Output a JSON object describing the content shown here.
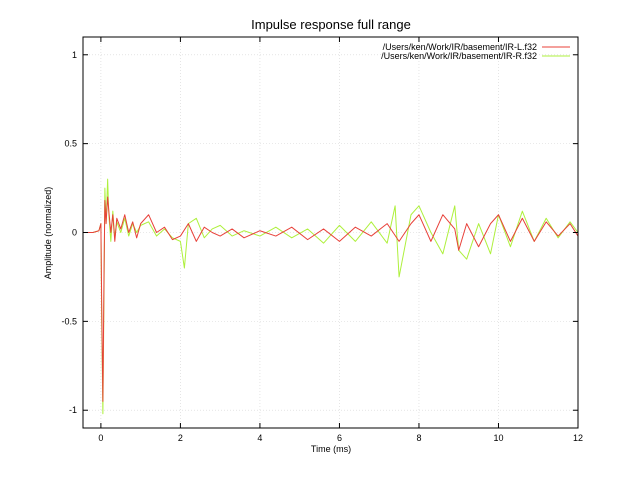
{
  "chart_data": {
    "type": "line",
    "title": "Impulse response full range",
    "xlabel": "Time (ms)",
    "ylabel": "Amplitude (normalized)",
    "xlim": [
      -0.45,
      12
    ],
    "ylim": [
      -1.1,
      1.1
    ],
    "x_ticks": [
      0,
      2,
      4,
      6,
      8,
      10,
      12
    ],
    "x_tick_labels": [
      "0",
      "2",
      "4",
      "6",
      "8",
      "10",
      "12"
    ],
    "y_ticks": [
      -1,
      -0.5,
      0,
      0.5,
      1
    ],
    "y_tick_labels": [
      "-1",
      "-0.5",
      "0",
      "0.5",
      "1"
    ],
    "grid": true,
    "legend_position": "top-right",
    "series": [
      {
        "name": "/Users/ken/Work/IR/basement/IR-L.f32",
        "color": "#e8413a",
        "x": [
          -0.45,
          -0.2,
          -0.05,
          0,
          0.02,
          0.05,
          0.08,
          0.1,
          0.13,
          0.17,
          0.2,
          0.25,
          0.3,
          0.35,
          0.4,
          0.5,
          0.6,
          0.7,
          0.8,
          0.9,
          1.0,
          1.2,
          1.4,
          1.6,
          1.8,
          2.0,
          2.2,
          2.4,
          2.6,
          2.8,
          3.0,
          3.3,
          3.6,
          4.0,
          4.4,
          4.8,
          5.2,
          5.6,
          6.0,
          6.4,
          6.8,
          7.2,
          7.5,
          7.8,
          8.0,
          8.3,
          8.6,
          8.9,
          9.0,
          9.2,
          9.5,
          9.8,
          10.0,
          10.3,
          10.6,
          10.9,
          11.2,
          11.5,
          11.8,
          12.0
        ],
        "y": [
          0,
          0,
          0.01,
          0.05,
          -0.4,
          -0.95,
          -0.2,
          0.18,
          0.05,
          0.2,
          0.12,
          0.0,
          0.1,
          -0.05,
          0.08,
          0.02,
          0.1,
          0.0,
          0.06,
          -0.03,
          0.05,
          0.1,
          0.0,
          0.03,
          -0.04,
          -0.02,
          0.05,
          -0.05,
          0.03,
          0.0,
          -0.02,
          0.02,
          -0.03,
          0.01,
          -0.02,
          0.03,
          -0.04,
          0.02,
          -0.05,
          0.03,
          -0.02,
          0.05,
          -0.05,
          0.05,
          0.1,
          -0.05,
          0.1,
          0.02,
          -0.1,
          0.05,
          -0.08,
          0.05,
          0.1,
          -0.05,
          0.08,
          -0.05,
          0.06,
          -0.02,
          0.05,
          -0.02
        ]
      },
      {
        "name": "/Users/ken/Work/IR/basement/IR-R.f32",
        "color": "#aef03c",
        "x": [
          -0.45,
          -0.2,
          -0.05,
          0,
          0.02,
          0.05,
          0.08,
          0.1,
          0.13,
          0.17,
          0.2,
          0.25,
          0.3,
          0.35,
          0.4,
          0.5,
          0.6,
          0.7,
          0.8,
          0.9,
          1.0,
          1.2,
          1.4,
          1.6,
          1.8,
          2.0,
          2.1,
          2.2,
          2.4,
          2.6,
          2.8,
          3.0,
          3.3,
          3.6,
          4.0,
          4.4,
          4.8,
          5.2,
          5.6,
          6.0,
          6.4,
          6.8,
          7.2,
          7.4,
          7.5,
          7.8,
          8.0,
          8.3,
          8.6,
          8.9,
          9.0,
          9.2,
          9.5,
          9.8,
          10.0,
          10.3,
          10.6,
          10.9,
          11.2,
          11.5,
          11.8,
          12.0
        ],
        "y": [
          0,
          0,
          0.01,
          0.05,
          -0.5,
          -1.02,
          -0.3,
          0.25,
          0.05,
          0.3,
          0.1,
          -0.05,
          0.12,
          -0.03,
          0.06,
          0.0,
          0.08,
          -0.02,
          0.05,
          0.0,
          0.04,
          0.06,
          -0.02,
          0.02,
          -0.03,
          -0.05,
          -0.2,
          0.05,
          0.08,
          -0.03,
          0.02,
          0.04,
          -0.02,
          0.01,
          -0.02,
          0.03,
          -0.03,
          0.02,
          -0.06,
          0.04,
          -0.05,
          0.06,
          -0.06,
          0.15,
          -0.25,
          0.1,
          0.15,
          0.0,
          -0.12,
          0.15,
          -0.1,
          -0.15,
          0.05,
          -0.12,
          0.1,
          -0.08,
          0.12,
          -0.05,
          0.08,
          -0.03,
          0.06,
          0.0
        ]
      }
    ]
  }
}
